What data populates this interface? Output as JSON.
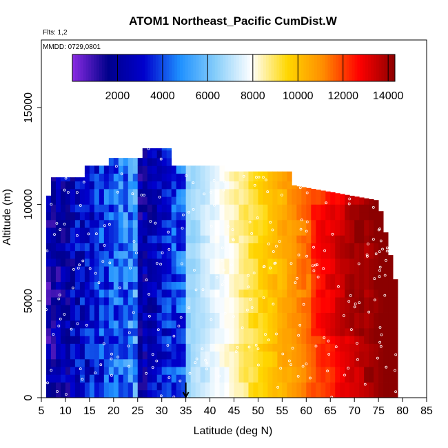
{
  "chart_data": {
    "type": "heatmap",
    "title": "ATOM1 Northeast_Pacific CumDist.W",
    "flights_label": "Flts: 1,2",
    "mmdd_label": "MMDD: 0729,0801",
    "xlabel": "Latitude (deg N)",
    "ylabel": "Altitude (m)",
    "xlim": [
      5,
      85
    ],
    "ylim": [
      0,
      18500
    ],
    "x_ticks": [
      5,
      10,
      15,
      20,
      25,
      30,
      35,
      40,
      45,
      50,
      55,
      60,
      65,
      70,
      75,
      80,
      85
    ],
    "y_ticks": [
      0,
      5000,
      10000,
      15000
    ],
    "colorbar": {
      "range": [
        0,
        14300
      ],
      "ticks": [
        2000,
        4000,
        6000,
        8000,
        10000,
        12000,
        14000
      ],
      "colors": [
        "#8a2be2",
        "#00008b",
        "#0000cd",
        "#1e90ff",
        "#87cefa",
        "#ffffff",
        "#ffd700",
        "#ff8c00",
        "#ff0000",
        "#8b0000"
      ]
    },
    "arrow_marker": {
      "x": 35,
      "note": "arrow at 35 deg N"
    },
    "altitude_profile": [
      {
        "x": 5,
        "ytop": 0
      },
      {
        "x": 6,
        "ytop": 9500
      },
      {
        "x": 7,
        "ytop": 11400
      },
      {
        "x": 14,
        "ytop": 11400
      },
      {
        "x": 14,
        "ytop": 12000
      },
      {
        "x": 19,
        "ytop": 12000
      },
      {
        "x": 19,
        "ytop": 12400
      },
      {
        "x": 26,
        "ytop": 12400
      },
      {
        "x": 26,
        "ytop": 12900
      },
      {
        "x": 32,
        "ytop": 12900
      },
      {
        "x": 32,
        "ytop": 12000
      },
      {
        "x": 43,
        "ytop": 12000
      },
      {
        "x": 43,
        "ytop": 11700
      },
      {
        "x": 57,
        "ytop": 11700
      },
      {
        "x": 57,
        "ytop": 11000
      },
      {
        "x": 75,
        "ytop": 10200
      },
      {
        "x": 77,
        "ytop": 8000
      },
      {
        "x": 79,
        "ytop": 5500
      },
      {
        "x": 79.5,
        "ytop": 0
      }
    ]
  }
}
